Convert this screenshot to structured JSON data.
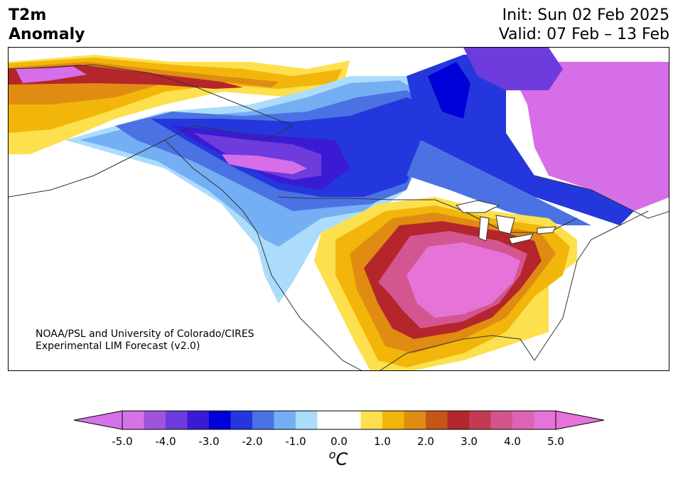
{
  "title": {
    "left_line1": "T2m",
    "left_line2": "Anomaly",
    "init": "Init: Sun 02 Feb 2025",
    "valid": "Valid: 07 Feb – 13 Feb"
  },
  "credit": {
    "line1": "NOAA/PSL and University of Colorado/CIRES",
    "line2": "Experimental LIM Forecast (v2.0)"
  },
  "colorbar": {
    "ticks": [
      "-5.0",
      "-4.0",
      "-3.0",
      "-2.0",
      "-1.0",
      "0.0",
      "1.0",
      "2.0",
      "3.0",
      "4.0",
      "5.0"
    ],
    "unit_sup": "o",
    "unit_main": "C",
    "colors": [
      "#d672e8",
      "#9d55dd",
      "#6e3bdc",
      "#3b1ad4",
      "#0000d8",
      "#2437dc",
      "#4a72e3",
      "#74aef3",
      "#acdcfb",
      "#ffffff",
      "#ffffff",
      "#fde04d",
      "#f2b60a",
      "#e08c12",
      "#c65518",
      "#b4262b",
      "#c43a55",
      "#d4558c",
      "#dd64b5",
      "#e673d7"
    ]
  },
  "map": {
    "colors": {
      "ocean": "#ffffff",
      "magenta": "#d66ee8",
      "pink": "#e673d7",
      "rose": "#d45690",
      "crimson": "#b4262b",
      "rust": "#c65518",
      "orange": "#e08c12",
      "gold": "#f2b60a",
      "yellow": "#fde04d",
      "lightblue": "#acdcfb",
      "skyblue": "#74aef3",
      "midblue": "#4a72e3",
      "blue": "#2437dc",
      "deepblue": "#0000d8",
      "indigo": "#3b1ad4",
      "violet": "#6e3bdc",
      "purple": "#9d55dd",
      "lines": "#333333"
    }
  }
}
